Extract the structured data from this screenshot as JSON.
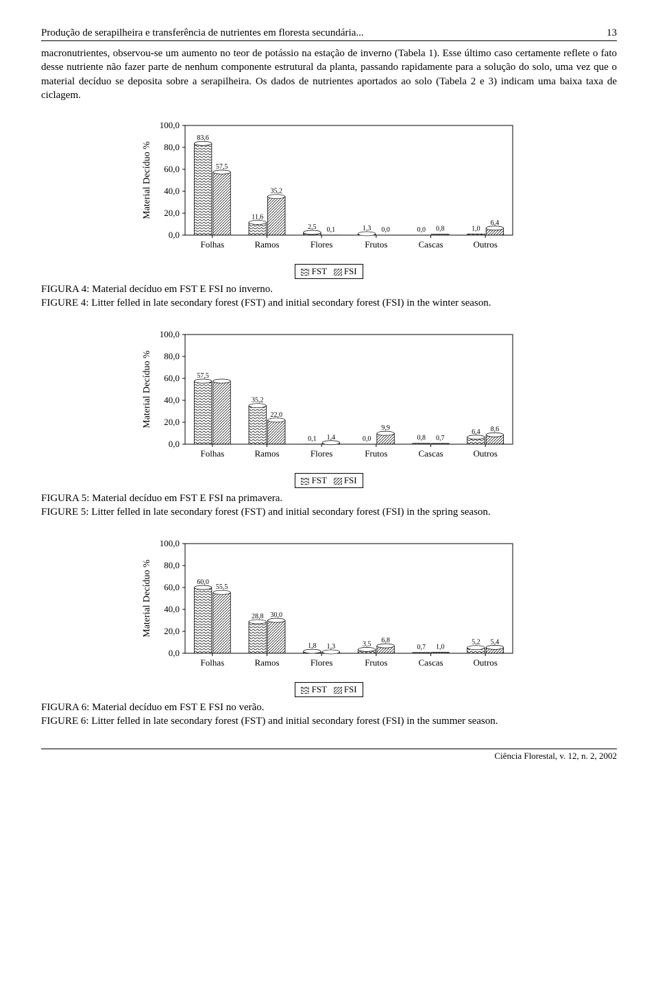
{
  "header": {
    "running_title": "Produção de serapilheira e transferência de nutrientes em floresta secundária...",
    "page_number": "13"
  },
  "paragraph": "macronutrientes, observou-se um aumento no teor de potássio na estação de inverno (Tabela 1). Esse último caso certamente reflete o fato desse nutriente não fazer parte de nenhum componente estrutural da planta, passando rapidamente para a solução do solo, uma vez que o material decíduo se deposita sobre a serapilheira. Os dados de nutrientes aportados ao solo (Tabela 2 e 3) indicam uma baixa taxa de ciclagem.",
  "legend": {
    "fst": "FST",
    "fsi": "FSI"
  },
  "chart_shared": {
    "categories": [
      "Folhas",
      "Ramos",
      "Flores",
      "Frutos",
      "Cascas",
      "Outros"
    ],
    "ylabel": "Material Decíduo %",
    "ylim": [
      0,
      100
    ],
    "ytick_step": 20,
    "label_fontsize": 14,
    "tick_fontsize": 13,
    "value_fontsize": 10,
    "background_color": "#ffffff",
    "border_color": "#000000",
    "bar_width": 0.32,
    "pattern_fst": "wave",
    "pattern_fsi": "hatch"
  },
  "fig4": {
    "type": "bar",
    "fst": [
      83.6,
      11.6,
      2.5,
      1.3,
      0.0,
      1.0
    ],
    "fsi": [
      57.5,
      35.2,
      0.1,
      0.0,
      0.8,
      6.4
    ],
    "value_labels_fst": [
      "83,6",
      "11,6",
      "2,5",
      "1,3",
      "0,0",
      "1,0"
    ],
    "value_labels_fsi": [
      "57,5",
      "35,2",
      "0,1",
      "0,0",
      "0,8",
      "6,4"
    ],
    "cap_pt": "FIGURA 4: Material decíduo em FST E FSI no inverno.",
    "cap_en": "FIGURE 4: Litter felled in late secondary forest (FST) and initial secondary forest (FSI) in the winter season."
  },
  "fig5": {
    "type": "bar",
    "fst": [
      57.5,
      35.2,
      0.1,
      0.0,
      0.8,
      6.4
    ],
    "fsi": [
      57.5,
      22.0,
      1.4,
      9.9,
      0.7,
      8.6
    ],
    "value_labels_fst": [
      "57,5",
      "35,2",
      "0,1",
      "0,0",
      "0,8",
      "6,4"
    ],
    "value_labels_fsi": [
      "",
      "22,0",
      "1,4",
      "9,9",
      "0,7",
      "8,6"
    ],
    "cap_pt": "FIGURA 5: Material decíduo em FST E FSI na primavera.",
    "cap_en": "FIGURE 5: Litter felled in late secondary forest (FST) and initial secondary forest (FSI) in the spring season."
  },
  "fig6": {
    "type": "bar",
    "fst": [
      60.0,
      28.8,
      1.8,
      3.5,
      0.7,
      5.2
    ],
    "fsi": [
      55.5,
      30.0,
      1.3,
      6.8,
      1.0,
      5.4
    ],
    "value_labels_fst": [
      "60,0",
      "28,8",
      "1,8",
      "3,5",
      "0,7",
      "5,2"
    ],
    "value_labels_fsi": [
      "55,5",
      "30,0",
      "1,3",
      "6,8",
      "1,0",
      "5,4"
    ],
    "cap_pt": "FIGURA 6: Material decíduo em FST E FSI no verão.",
    "cap_en": "FIGURE 6: Litter felled in late secondary forest (FST) and initial secondary forest (FSI) in the summer season."
  },
  "footer": "Ciência Florestal, v. 12, n. 2, 2002"
}
